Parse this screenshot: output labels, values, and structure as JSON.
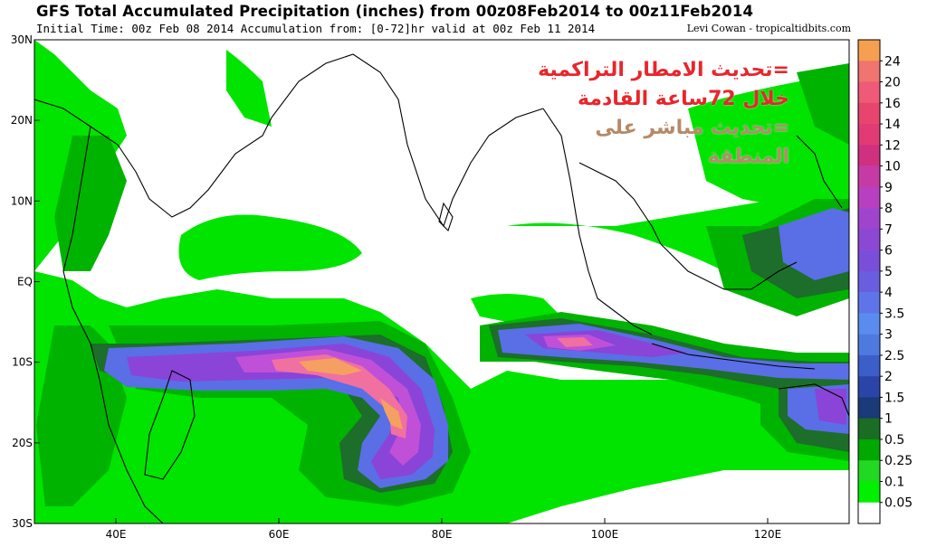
{
  "header": {
    "title": "GFS Total Accumulated Precipitation (inches) from 00z08Feb2014 to 00z11Feb2014",
    "subtitle": "Initial Time: 00z Feb 08 2014 Accumulation from: [0-72]hr valid at 00z Feb 11 2014",
    "credit": "Levi Cowan - tropicaltidbits.com"
  },
  "map": {
    "lon_range": [
      30,
      130
    ],
    "lat_range": [
      -30,
      30
    ],
    "lon_ticks": [
      {
        "value": 40,
        "label": "40E"
      },
      {
        "value": 60,
        "label": "60E"
      },
      {
        "value": 80,
        "label": "80E"
      },
      {
        "value": 100,
        "label": "100E"
      },
      {
        "value": 120,
        "label": "120E"
      }
    ],
    "lat_ticks": [
      {
        "value": 30,
        "label": "30N"
      },
      {
        "value": 20,
        "label": "20N"
      },
      {
        "value": 10,
        "label": "10N"
      },
      {
        "value": 0,
        "label": "EQ"
      },
      {
        "value": -10,
        "label": "10S"
      },
      {
        "value": -20,
        "label": "20S"
      },
      {
        "value": -30,
        "label": "30S"
      }
    ],
    "colors": {
      "base": "#ffffff",
      "light_green": "#00e400",
      "mid_green": "#00b300",
      "dark_green": "#1c6e2a",
      "blue": "#5a6ee6",
      "purple": "#8a44d8",
      "magenta": "#c050d8",
      "pink": "#f070a0",
      "orange": "#f5a060"
    }
  },
  "colorbar": {
    "labels": [
      "24",
      "20",
      "16",
      "14",
      "12",
      "10",
      "9",
      "8",
      "7",
      "6",
      "5",
      "4",
      "3.5",
      "3",
      "2.5",
      "2",
      "1.5",
      "1",
      "0.5",
      "0.25",
      "0.1",
      "0.05"
    ],
    "colors": [
      "#f5a050",
      "#f07470",
      "#ee5a78",
      "#e8456e",
      "#e23a74",
      "#d03080",
      "#c63aa6",
      "#b840c0",
      "#9f44cc",
      "#8c48d2",
      "#7a4ed8",
      "#6a5ee0",
      "#5f74e8",
      "#5a8cf0",
      "#4e7adf",
      "#3c5ec8",
      "#2a44a8",
      "#1a3a78",
      "#1a6e24",
      "#00a800",
      "#22d822",
      "#00f000",
      "#ffffff"
    ]
  },
  "overlay": {
    "line1": "=تحديث الامطار التراكمية",
    "line2": "خلال 72ساعة القادمة",
    "line3": "=تحديث مباشر على",
    "line4": "المنطقة"
  }
}
